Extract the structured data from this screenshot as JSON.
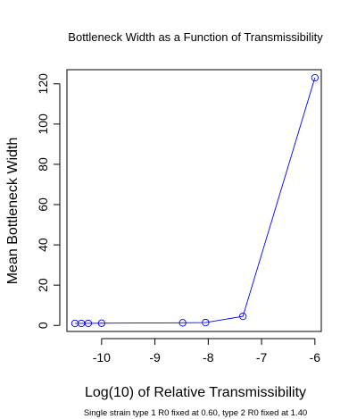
{
  "chart_data": {
    "type": "line",
    "title": "Bottleneck Width as a Function of Transmissibility",
    "xlabel": "Log(10) of Relative Transmissibility",
    "ylabel": "Mean Bottleneck Width",
    "subtitle": "Single strain type 1 R0 fixed at 0.60, type 2 R0 fixed at 1.40",
    "xlim": [
      -10.65,
      -5.88
    ],
    "ylim": [
      -3,
      127
    ],
    "xticks": [
      -10,
      -9,
      -8,
      -7,
      -6
    ],
    "xtick_labels": [
      "-10",
      "-9",
      "-8",
      "-7",
      "-6"
    ],
    "yticks": [
      0,
      20,
      40,
      60,
      80,
      100,
      120
    ],
    "ytick_labels": [
      "0",
      "20",
      "40",
      "60",
      "80",
      "100",
      "120"
    ],
    "series": [
      {
        "name": "Mean Bottleneck Width",
        "color": "#0000ff",
        "x": [
          -10.5,
          -10.38,
          -10.25,
          -10.0,
          -8.48,
          -8.05,
          -7.35,
          -6.0
        ],
        "y": [
          1.0,
          1.0,
          1.0,
          1.1,
          1.3,
          1.4,
          4.5,
          123.0
        ]
      }
    ]
  }
}
